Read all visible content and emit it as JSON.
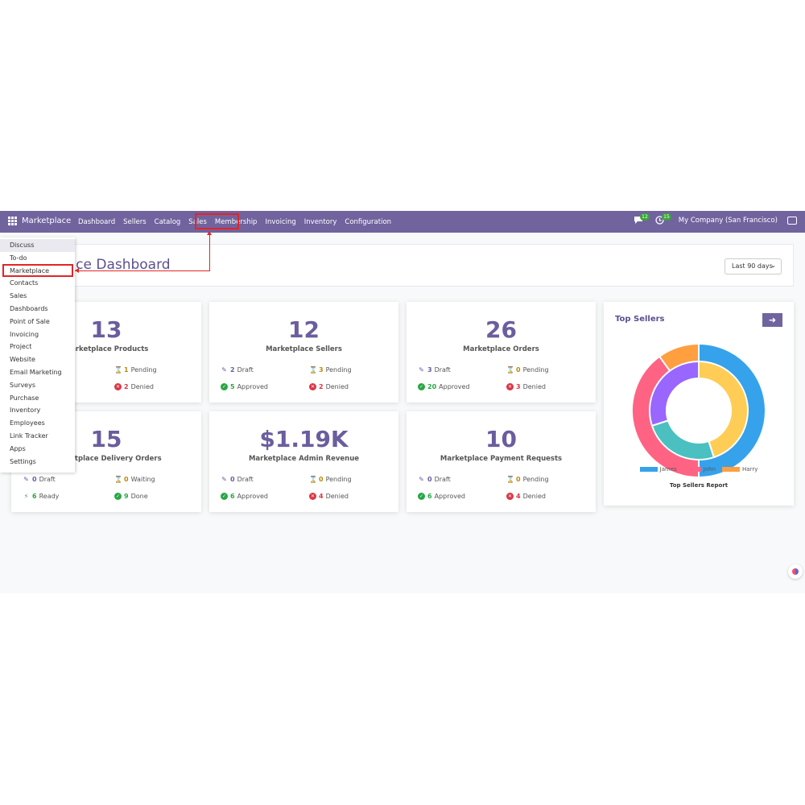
{
  "navbar": {
    "brand": "Marketplace",
    "menu": [
      "Dashboard",
      "Sellers",
      "Catalog",
      "Sales",
      "Membership",
      "Invoicing",
      "Inventory",
      "Configuration"
    ],
    "messages_count": "12",
    "activities_count": "15",
    "company": "My Company (San Francisco)"
  },
  "header": {
    "title": "Marketplace Dashboard",
    "title_visible": "lace Dashboard",
    "period": "Last 90 days"
  },
  "apps_menu": [
    "Discuss",
    "To-do",
    "Marketplace",
    "Contacts",
    "Sales",
    "Dashboards",
    "Point of Sale",
    "Invoicing",
    "Project",
    "Website",
    "Email Marketing",
    "Surveys",
    "Purchase",
    "Inventory",
    "Employees",
    "Link Tracker",
    "Apps",
    "Settings"
  ],
  "cards": {
    "products": {
      "value": "13",
      "label": "Marketplace Products",
      "pending": "1",
      "pending_label": "Pending",
      "denied": "2",
      "denied_label": "Denied"
    },
    "sellers": {
      "value": "12",
      "label": "Marketplace Sellers",
      "draft": "2",
      "draft_label": "Draft",
      "pending": "3",
      "pending_label": "Pending",
      "approved": "5",
      "approved_label": "Approved",
      "denied": "2",
      "denied_label": "Denied"
    },
    "orders": {
      "value": "26",
      "label": "Marketplace Orders",
      "draft": "3",
      "draft_label": "Draft",
      "pending": "0",
      "pending_label": "Pending",
      "approved": "20",
      "approved_label": "Approved",
      "denied": "3",
      "denied_label": "Denied"
    },
    "delivery": {
      "value": "15",
      "label": "Marketplace Delivery Orders",
      "draft": "0",
      "draft_label": "Draft",
      "waiting": "0",
      "waiting_label": "Waiting",
      "ready": "6",
      "ready_label": "Ready",
      "done": "9",
      "done_label": "Done"
    },
    "revenue": {
      "value": "$1.19K",
      "label": "Marketplace Admin Revenue",
      "draft": "0",
      "draft_label": "Draft",
      "pending": "0",
      "pending_label": "Pending",
      "approved": "6",
      "approved_label": "Approved",
      "denied": "4",
      "denied_label": "Denied"
    },
    "payments": {
      "value": "10",
      "label": "Marketplace Payment Requests",
      "draft": "0",
      "draft_label": "Draft",
      "pending": "0",
      "pending_label": "Pending",
      "approved": "6",
      "approved_label": "Approved",
      "denied": "4",
      "denied_label": "Denied"
    }
  },
  "top_sellers": {
    "title": "Top Sellers",
    "caption": "Top Sellers Report",
    "legend": [
      {
        "name": "James",
        "color": "#36a2eb"
      },
      {
        "name": "John",
        "color": "#ff6384"
      },
      {
        "name": "Harry",
        "color": "#ff9f40"
      }
    ]
  },
  "chart_data": {
    "type": "pie",
    "title": "Top Sellers",
    "series": [
      {
        "values": [
          0.5,
          0.4,
          0.1
        ],
        "colors": [
          "#36a2eb",
          "#ff6384",
          "#ff9f40"
        ]
      },
      {
        "values": [
          0.45,
          0.25,
          0.3
        ],
        "colors": [
          "#ffcd56",
          "#4bc0c0",
          "#9966ff"
        ]
      }
    ],
    "categories": [
      "James",
      "John",
      "Harry"
    ]
  },
  "colors": {
    "brand": "#71639e",
    "highlight": "#e32424",
    "pending": "#b88a0a",
    "approved": "#28a745",
    "denied": "#dc3545"
  }
}
